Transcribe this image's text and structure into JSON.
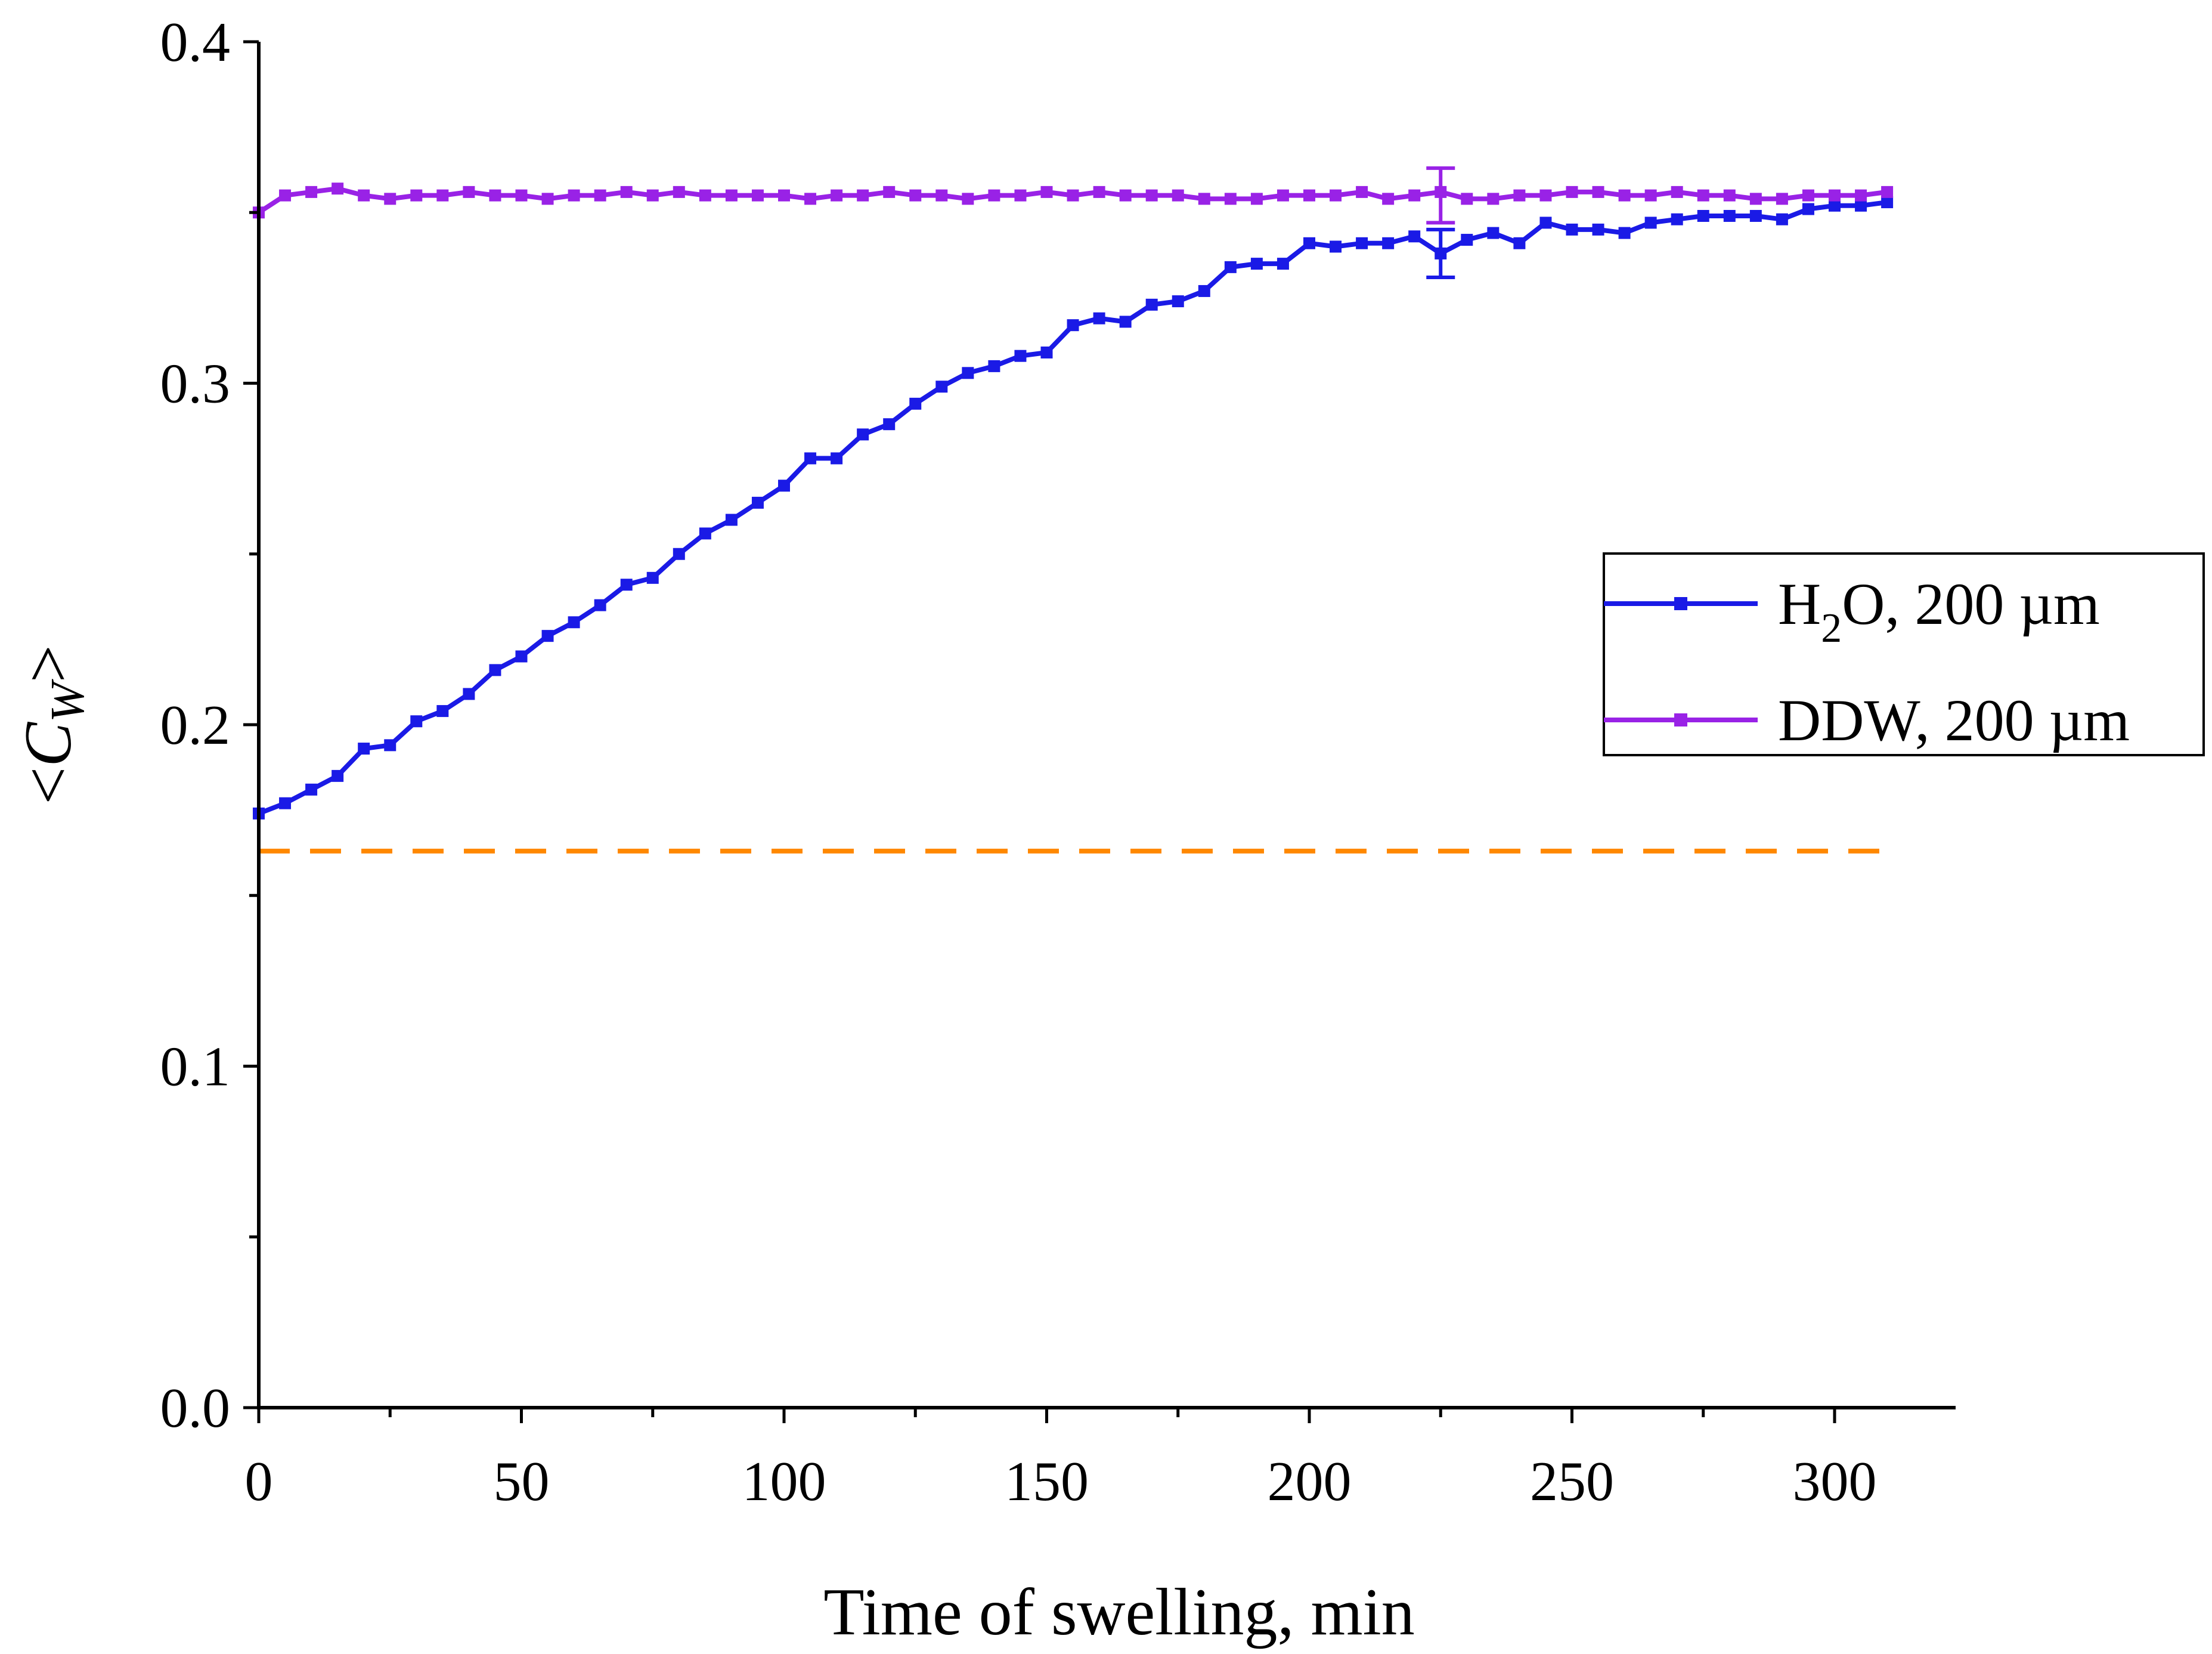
{
  "chart_data": {
    "type": "line",
    "title": "",
    "xlabel": "Time of swelling, min",
    "ylabel": {
      "lt": "<",
      "main": "C",
      "sub": "W",
      "gt": ">"
    },
    "xlim": [
      0,
      315
    ],
    "ylim": [
      0.0,
      0.4
    ],
    "xticks": [
      0,
      50,
      100,
      150,
      200,
      250,
      300
    ],
    "xtick_labels": [
      "0",
      "50",
      "100",
      "150",
      "200",
      "250",
      "300"
    ],
    "yticks": [
      0.0,
      0.1,
      0.2,
      0.3,
      0.4
    ],
    "ytick_labels": [
      "0.0",
      "0.1",
      "0.2",
      "0.3",
      "0.4"
    ],
    "grid": false,
    "legend_position": "right",
    "x": [
      0,
      5,
      10,
      15,
      20,
      25,
      30,
      35,
      40,
      45,
      50,
      55,
      60,
      65,
      70,
      75,
      80,
      85,
      90,
      95,
      100,
      105,
      110,
      115,
      120,
      125,
      130,
      135,
      140,
      145,
      150,
      155,
      160,
      165,
      170,
      175,
      180,
      185,
      190,
      195,
      200,
      205,
      210,
      215,
      220,
      225,
      230,
      235,
      240,
      245,
      250,
      255,
      260,
      265,
      270,
      275,
      280,
      285,
      290,
      295,
      300,
      305,
      310
    ],
    "series": [
      {
        "name": "H2O, 200 µm",
        "legend": {
          "base": "H",
          "sub": "2",
          "rest": "O, 200 µm"
        },
        "color": "#1a1ae6",
        "values": [
          0.174,
          0.177,
          0.181,
          0.185,
          0.193,
          0.194,
          0.201,
          0.204,
          0.209,
          0.216,
          0.22,
          0.226,
          0.23,
          0.235,
          0.241,
          0.243,
          0.25,
          0.256,
          0.26,
          0.265,
          0.27,
          0.278,
          0.278,
          0.285,
          0.288,
          0.294,
          0.299,
          0.303,
          0.305,
          0.308,
          0.309,
          0.317,
          0.319,
          0.318,
          0.323,
          0.324,
          0.327,
          0.334,
          0.335,
          0.335,
          0.341,
          0.34,
          0.341,
          0.341,
          0.343,
          0.338,
          0.342,
          0.344,
          0.341,
          0.347,
          0.345,
          0.345,
          0.344,
          0.347,
          0.348,
          0.349,
          0.349,
          0.349,
          0.348,
          0.351,
          0.352,
          0.352,
          0.353
        ],
        "error_bars": [
          {
            "x": 225,
            "y": 0.338,
            "err": 0.007
          }
        ]
      },
      {
        "name": "DDW, 200 µm",
        "legend": {
          "base": "DDW, 200 µm",
          "sub": "",
          "rest": ""
        },
        "color": "#9922e6",
        "values": [
          0.35,
          0.355,
          0.356,
          0.357,
          0.355,
          0.354,
          0.355,
          0.355,
          0.356,
          0.355,
          0.355,
          0.354,
          0.355,
          0.355,
          0.356,
          0.355,
          0.356,
          0.355,
          0.355,
          0.355,
          0.355,
          0.354,
          0.355,
          0.355,
          0.356,
          0.355,
          0.355,
          0.354,
          0.355,
          0.355,
          0.356,
          0.355,
          0.356,
          0.355,
          0.355,
          0.355,
          0.354,
          0.354,
          0.354,
          0.355,
          0.355,
          0.355,
          0.356,
          0.354,
          0.355,
          0.356,
          0.354,
          0.354,
          0.355,
          0.355,
          0.356,
          0.356,
          0.355,
          0.355,
          0.356,
          0.355,
          0.355,
          0.354,
          0.354,
          0.355,
          0.355,
          0.355,
          0.356
        ],
        "error_bars": [
          {
            "x": 225,
            "y": 0.355,
            "err": 0.008
          }
        ]
      }
    ],
    "reference_lines": [
      {
        "y": 0.163,
        "x_from": 0,
        "x_to": 310,
        "color": "#ff8800",
        "style": "dashed"
      }
    ]
  }
}
